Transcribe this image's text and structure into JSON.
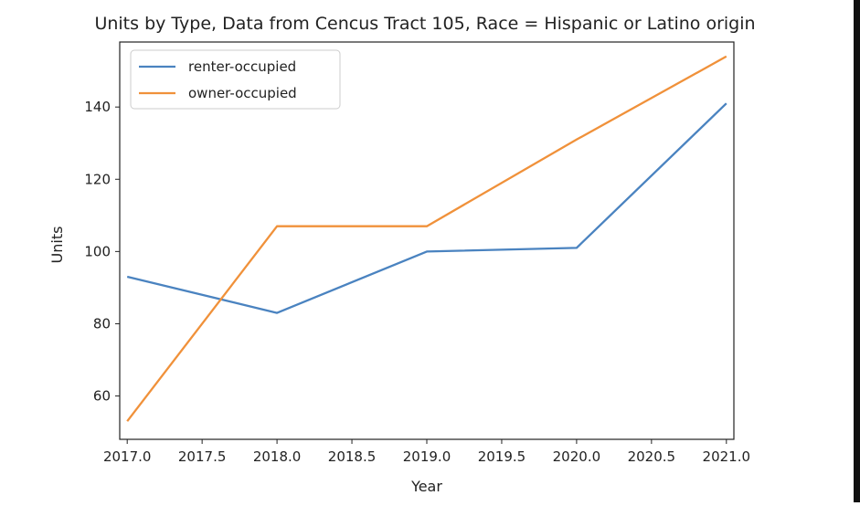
{
  "chart_data": {
    "type": "line",
    "title": "Units by Type, Data from Cencus Tract 105, Race = Hispanic or Latino origin",
    "xlabel": "Year",
    "ylabel": "Units",
    "x": [
      2017,
      2018,
      2019,
      2020,
      2021
    ],
    "xlim": [
      2016.95,
      2021.05
    ],
    "ylim": [
      48,
      158
    ],
    "xticks": [
      "2017.0",
      "2017.5",
      "2018.0",
      "2018.5",
      "2019.0",
      "2019.5",
      "2020.0",
      "2020.5",
      "2021.0"
    ],
    "xtick_values": [
      2017.0,
      2017.5,
      2018.0,
      2018.5,
      2019.0,
      2019.5,
      2020.0,
      2020.5,
      2021.0
    ],
    "yticks": [
      "60",
      "80",
      "100",
      "120",
      "140"
    ],
    "ytick_values": [
      60,
      80,
      100,
      120,
      140
    ],
    "grid": false,
    "legend_position": "top-left",
    "series": [
      {
        "name": "renter-occupied",
        "color": "#4a83c0",
        "values": [
          93,
          83,
          100,
          101,
          141
        ]
      },
      {
        "name": "owner-occupied",
        "color": "#f0913a",
        "values": [
          53,
          107,
          107,
          131,
          154
        ]
      }
    ]
  }
}
